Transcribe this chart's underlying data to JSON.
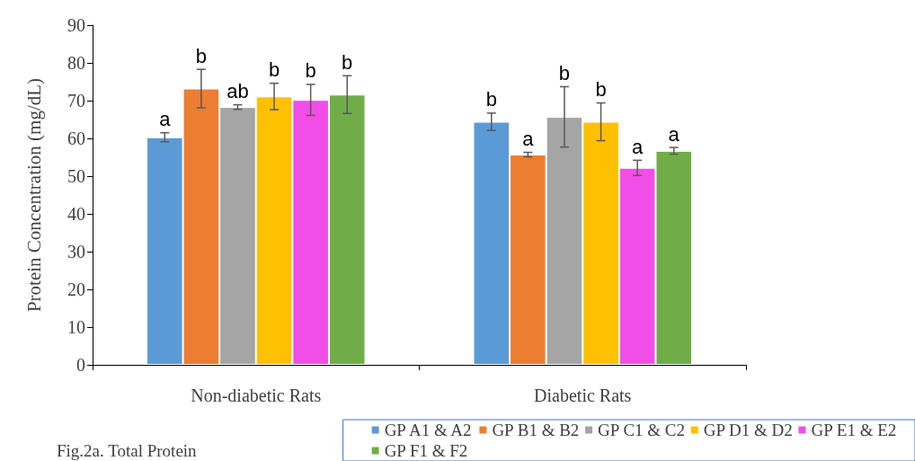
{
  "chart_data": {
    "type": "bar",
    "ylabel": "Protein Concentration (mg/dL)",
    "categories": [
      "Non-diabetic Rats",
      "Diabetic Rats"
    ],
    "series": [
      {
        "name": "GP A1 & A2",
        "color": "#5b9bd5",
        "values": [
          60.3,
          64.4
        ],
        "errors": [
          1.2,
          2.3
        ],
        "value_labels": [
          "a",
          "b"
        ]
      },
      {
        "name": "GP B1 & B2",
        "color": "#ed7d31",
        "values": [
          73.2,
          55.7
        ],
        "errors": [
          5.1,
          0.6
        ],
        "value_labels": [
          "b",
          "a"
        ]
      },
      {
        "name": "GP C1 & C2",
        "color": "#a5a5a5",
        "values": [
          68.3,
          65.7
        ],
        "errors": [
          0.6,
          8
        ],
        "value_labels": [
          "ab",
          "b"
        ]
      },
      {
        "name": "GP D1 & D2",
        "color": "#ffc000",
        "values": [
          71.1,
          64.4
        ],
        "errors": [
          3.5,
          5
        ],
        "value_labels": [
          "b",
          "b"
        ]
      },
      {
        "name": "GP E1 & E2",
        "color": "#f14ee8",
        "values": [
          70.2,
          52.2
        ],
        "errors": [
          4.1,
          2
        ],
        "value_labels": [
          "b",
          "a"
        ]
      },
      {
        "name": "GP F1 & F2",
        "color": "#70ad47",
        "values": [
          71.6,
          56.7
        ],
        "errors": [
          5,
          0.9
        ],
        "value_labels": [
          "b",
          "a"
        ]
      }
    ],
    "ylim": [
      0,
      90
    ],
    "yticks": [
      0,
      10,
      20,
      30,
      40,
      50,
      60,
      70,
      80,
      90
    ],
    "grid": false,
    "legend": "bottom right",
    "annotations": [
      "Fig.2a. Total Protein"
    ]
  }
}
